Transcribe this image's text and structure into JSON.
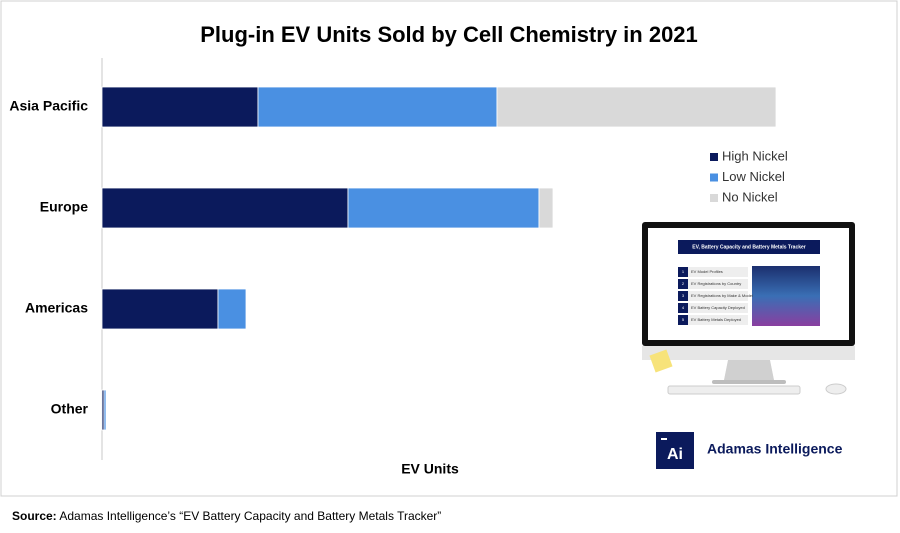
{
  "chart_data": {
    "type": "stacked-bar-horizontal",
    "title": "Plug-in EV Units Sold by Cell Chemistry in 2021",
    "x_label": "EV Units",
    "categories": [
      "Asia Pacific",
      "Europe",
      "Americas",
      "Other"
    ],
    "series": [
      {
        "name": "High Nickel",
        "color": "#0b1a5c",
        "values": [
          780000,
          1230000,
          580000,
          10000
        ]
      },
      {
        "name": "Low Nickel",
        "color": "#4a90e2",
        "values": [
          1195000,
          955000,
          140000,
          10000
        ]
      },
      {
        "name": "No Nickel",
        "color": "#d9d9d9",
        "values": [
          1395000,
          70000,
          0,
          0
        ]
      }
    ],
    "xlim": [
      0,
      3900000
    ],
    "legend": "right"
  },
  "monitor": {
    "title": "EV, Battery Capacity and Battery Metals Tracker",
    "items": [
      {
        "number": "1",
        "text": "EV Model Profiles"
      },
      {
        "number": "2",
        "text": "EV Registrations by Country"
      },
      {
        "number": "3",
        "text": "EV Registrations by Make & Model"
      },
      {
        "number": "4",
        "text": "EV Battery Capacity Deployed"
      },
      {
        "number": "5",
        "text": "EV Battery Metals Deployed"
      }
    ]
  },
  "logo": {
    "mark": "Ai",
    "name": "Adamas Intelligence"
  },
  "source": {
    "label": "Source:",
    "text": "Adamas Intelligence’s “EV Battery Capacity and Battery Metals Tracker”"
  }
}
